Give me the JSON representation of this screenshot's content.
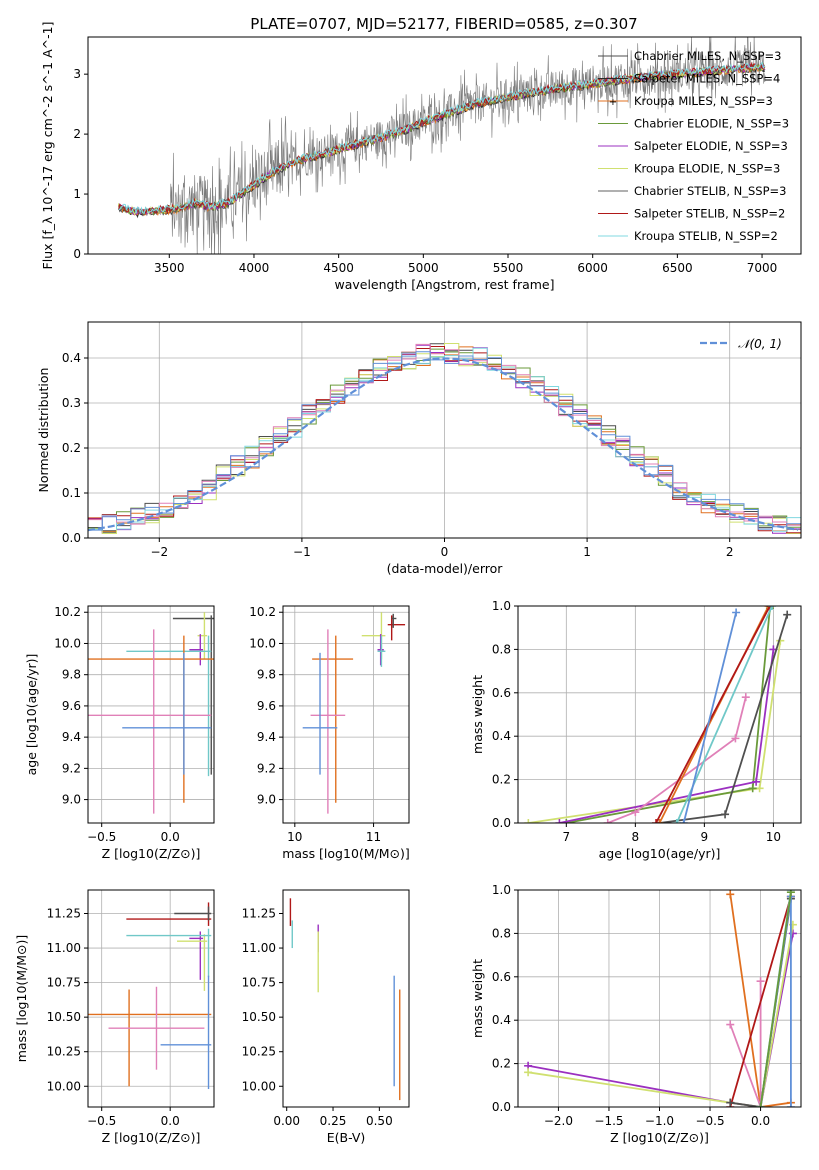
{
  "figure_title": "PLATE=0707, MJD=52177, FIBERID=0585, z=0.307",
  "colors": {
    "c0": "#4d4d4d",
    "c1": "#2a2a2a",
    "c2": "#e07020",
    "c3": "#6a9a3a",
    "c4": "#9b30c0",
    "c5": "#d0e070",
    "c6": "#606060",
    "c7": "#b01818",
    "c8": "#80d8e0",
    "pink": "#e080b8",
    "blue": "#6090d8",
    "dgray": "#505050",
    "teal": "#70c8c8",
    "grid": "#b0b0b0"
  },
  "chart_data": [
    {
      "id": "spectrum",
      "type": "line",
      "title": "PLATE=0707, MJD=52177, FIBERID=0585, z=0.307",
      "xlabel": "wavelength [Angstrom, rest frame]",
      "ylabel": "Flux [f_λ 10^-17 erg cm^-2 s^-1 A^-1]",
      "xlim": [
        3020,
        7230
      ],
      "ylim": [
        0,
        3.62
      ],
      "xticks": [
        "3500",
        "4000",
        "4500",
        "5000",
        "5500",
        "6000",
        "6500",
        "7000"
      ],
      "yticks": [
        "0",
        "1",
        "2",
        "3"
      ],
      "grid": false,
      "legend_position": "top-right",
      "continuum": {
        "x": [
          3200,
          3300,
          3400,
          3550,
          3650,
          3750,
          3850,
          3950,
          4000,
          4100,
          4200,
          4300,
          4400,
          4500,
          4700,
          4900,
          5000,
          5100,
          5300,
          5500,
          5700,
          5900,
          6100,
          6300,
          6500,
          6700,
          6900,
          7020
        ],
        "y": [
          0.78,
          0.7,
          0.72,
          0.75,
          0.85,
          0.78,
          0.86,
          1.05,
          1.15,
          1.35,
          1.48,
          1.6,
          1.66,
          1.75,
          1.9,
          2.08,
          2.2,
          2.3,
          2.5,
          2.62,
          2.72,
          2.8,
          2.88,
          2.95,
          3.0,
          3.05,
          3.1,
          3.12
        ]
      },
      "series": [
        {
          "name": "Chabrier MILES, N_SSP=3"
        },
        {
          "name": "Salpeter MILES, N_SSP=4"
        },
        {
          "name": "Kroupa MILES, N_SSP=3"
        },
        {
          "name": "Chabrier ELODIE, N_SSP=3"
        },
        {
          "name": "Salpeter ELODIE, N_SSP=3"
        },
        {
          "name": "Kroupa ELODIE, N_SSP=3"
        },
        {
          "name": "Chabrier STELIB, N_SSP=3"
        },
        {
          "name": "Salpeter STELIB, N_SSP=2"
        },
        {
          "name": "Kroupa STELIB, N_SSP=2"
        }
      ]
    },
    {
      "id": "residuals",
      "type": "line",
      "xlabel": "(data-model)/error",
      "ylabel": "Normed distribution",
      "xlim": [
        -2.5,
        2.5
      ],
      "ylim": [
        0,
        0.48
      ],
      "xticks": [
        "−2",
        "−1",
        "0",
        "1",
        "2"
      ],
      "yticks": [
        "0.0",
        "0.1",
        "0.2",
        "0.3",
        "0.4"
      ],
      "grid": true,
      "legend_position": "top-right",
      "legend": [
        "𝒩(0, 1)"
      ],
      "gaussian": {
        "mean": 0,
        "sigma": 1
      },
      "histogram_bins": 50
    },
    {
      "id": "age_vs_Z",
      "type": "scatter",
      "xlabel": "Z [log10(Z/Z⊙)]",
      "ylabel": "age [log10(age/yr)]",
      "xlim": [
        -0.6,
        0.32
      ],
      "ylim": [
        8.85,
        10.24
      ],
      "xticks": [
        "−0.5",
        "0.0"
      ],
      "yticks": [
        "9.0",
        "9.2",
        "9.4",
        "9.6",
        "9.8",
        "10.0",
        "10.2"
      ],
      "grid": true,
      "errorbars": [
        {
          "color": "dgray",
          "x": 0.3,
          "xerr": [
            0.28,
            0.02
          ],
          "y": 10.16,
          "yerr": [
            1.0,
            0.02
          ]
        },
        {
          "color": "c5",
          "x": 0.25,
          "xerr": [
            0.05,
            0.02
          ],
          "y": 10.05,
          "yerr": [
            0.15,
            0.15
          ]
        },
        {
          "color": "c4",
          "x": 0.22,
          "xerr": [
            0.08,
            0.02
          ],
          "y": 9.96,
          "yerr": [
            0.1,
            0.1
          ]
        },
        {
          "color": "teal",
          "x": 0.28,
          "xerr": [
            0.6,
            0.02
          ],
          "y": 9.95,
          "yerr": [
            0.8,
            0.1
          ]
        },
        {
          "color": "c2",
          "x": 0.1,
          "xerr": [
            0.7,
            0.25
          ],
          "y": 9.9,
          "yerr": [
            0.92,
            0.15
          ]
        },
        {
          "color": "pink",
          "x": -0.12,
          "xerr": [
            0.5,
            0.42
          ],
          "y": 9.54,
          "yerr": [
            0.63,
            0.55
          ]
        },
        {
          "color": "blue",
          "x": 0.1,
          "xerr": [
            0.45,
            0.2
          ],
          "y": 9.46,
          "yerr": [
            0.3,
            0.48
          ]
        }
      ]
    },
    {
      "id": "age_vs_mass",
      "type": "scatter",
      "xlabel": "mass [log10(M/M⊙)]",
      "ylabel": "",
      "xlim": [
        9.85,
        11.45
      ],
      "ylim": [
        8.85,
        10.24
      ],
      "xticks": [
        "10",
        "11"
      ],
      "yticks": [
        "9.0",
        "9.2",
        "9.4",
        "9.6",
        "9.8",
        "10.0",
        "10.2"
      ],
      "grid": true,
      "errorbars": [
        {
          "color": "c7",
          "x": 11.23,
          "xerr": [
            0.05,
            0.17
          ],
          "y": 10.12,
          "yerr": [
            0.1,
            0.06
          ]
        },
        {
          "color": "dgray",
          "x": 11.25,
          "xerr": [
            0.02,
            0.04
          ],
          "y": 10.16,
          "yerr": [
            0.06,
            0.03
          ]
        },
        {
          "color": "c5",
          "x": 11.1,
          "xerr": [
            0.25,
            0.05
          ],
          "y": 10.05,
          "yerr": [
            0.15,
            0.15
          ]
        },
        {
          "color": "c4",
          "x": 11.09,
          "xerr": [
            0.04,
            0.04
          ],
          "y": 9.96,
          "yerr": [
            0.1,
            0.1
          ]
        },
        {
          "color": "teal",
          "x": 11.1,
          "xerr": [
            0.05,
            0.05
          ],
          "y": 9.95,
          "yerr": [
            0.1,
            0.1
          ]
        },
        {
          "color": "c2",
          "x": 10.52,
          "xerr": [
            0.3,
            0.22
          ],
          "y": 9.9,
          "yerr": [
            0.92,
            0.15
          ]
        },
        {
          "color": "pink",
          "x": 10.42,
          "xerr": [
            0.22,
            0.22
          ],
          "y": 9.54,
          "yerr": [
            0.63,
            0.55
          ]
        },
        {
          "color": "blue",
          "x": 10.32,
          "xerr": [
            0.22,
            0.22
          ],
          "y": 9.46,
          "yerr": [
            0.3,
            0.48
          ]
        }
      ]
    },
    {
      "id": "massweight_vs_age",
      "type": "line",
      "xlabel": "age [log10(age/yr)]",
      "ylabel": "mass weight",
      "xlim": [
        6.3,
        10.4
      ],
      "ylim": [
        0,
        1
      ],
      "xticks": [
        "7",
        "8",
        "9",
        "10"
      ],
      "yticks": [
        "0.0",
        "0.2",
        "0.4",
        "0.6",
        "0.8",
        "1.0"
      ],
      "grid": true,
      "series": [
        {
          "color": "c5",
          "x": [
            6.45,
            9.8,
            10.1
          ],
          "y": [
            0.0,
            0.16,
            0.84
          ]
        },
        {
          "color": "c3",
          "x": [
            7.0,
            9.7,
            9.95
          ],
          "y": [
            0.0,
            0.16,
            0.99
          ]
        },
        {
          "color": "c4",
          "x": [
            6.9,
            9.75,
            10.0
          ],
          "y": [
            0.0,
            0.19,
            0.8
          ]
        },
        {
          "color": "dgray",
          "x": [
            8.35,
            9.3,
            10.2
          ],
          "y": [
            0.0,
            0.04,
            0.96
          ]
        },
        {
          "color": "pink",
          "x": [
            7.6,
            8.0,
            9.45,
            9.6
          ],
          "y": [
            0.0,
            0.05,
            0.39,
            0.58
          ]
        },
        {
          "color": "c2",
          "x": [
            8.35,
            9.93
          ],
          "y": [
            0.0,
            1.0
          ]
        },
        {
          "color": "c7",
          "x": [
            8.3,
            9.95
          ],
          "y": [
            0.0,
            1.0
          ]
        },
        {
          "color": "teal",
          "x": [
            8.6,
            9.98
          ],
          "y": [
            0.0,
            1.0
          ]
        },
        {
          "color": "blue",
          "x": [
            8.7,
            9.46
          ],
          "y": [
            0.0,
            0.97
          ]
        }
      ]
    },
    {
      "id": "mass_vs_Z",
      "type": "scatter",
      "xlabel": "Z [log10(Z/Z⊙)]",
      "ylabel": "mass [log10(M/M⊙)]",
      "xlim": [
        -0.6,
        0.32
      ],
      "ylim": [
        9.85,
        11.42
      ],
      "xticks": [
        "−0.5",
        "0.0"
      ],
      "yticks": [
        "10.00",
        "10.25",
        "10.50",
        "10.75",
        "11.00",
        "11.25"
      ],
      "grid": true,
      "errorbars": [
        {
          "color": "c7",
          "x": 0.28,
          "xerr": [
            0.6,
            0.02
          ],
          "y": 11.21,
          "yerr": [
            0.05,
            0.12
          ]
        },
        {
          "color": "dgray",
          "x": 0.28,
          "xerr": [
            0.25,
            0.02
          ],
          "y": 11.25,
          "yerr": [
            0.05,
            0.05
          ]
        },
        {
          "color": "c4",
          "x": 0.22,
          "xerr": [
            0.08,
            0.02
          ],
          "y": 11.07,
          "yerr": [
            0.3,
            0.05
          ]
        },
        {
          "color": "c5",
          "x": 0.25,
          "xerr": [
            0.2,
            0.02
          ],
          "y": 11.05,
          "yerr": [
            0.36,
            0.05
          ]
        },
        {
          "color": "teal",
          "x": 0.28,
          "xerr": [
            0.6,
            0.02
          ],
          "y": 11.09,
          "yerr": [
            0.3,
            0.05
          ]
        },
        {
          "color": "c2",
          "x": -0.3,
          "xerr": [
            0.3,
            0.6
          ],
          "y": 10.52,
          "yerr": [
            0.52,
            0.18
          ]
        },
        {
          "color": "pink",
          "x": -0.1,
          "xerr": [
            0.35,
            0.35
          ],
          "y": 10.42,
          "yerr": [
            0.3,
            0.3
          ]
        },
        {
          "color": "blue",
          "x": 0.28,
          "xerr": [
            0.35,
            0.02
          ],
          "y": 10.3,
          "yerr": [
            0.32,
            0.5
          ]
        }
      ]
    },
    {
      "id": "mass_vs_EBV",
      "type": "scatter",
      "xlabel": "E(B-V)",
      "ylabel": "",
      "xlim": [
        -0.02,
        0.66
      ],
      "ylim": [
        9.85,
        11.42
      ],
      "xticks": [
        "0.00",
        "0.25",
        "0.50"
      ],
      "yticks": [
        "10.00",
        "10.25",
        "10.50",
        "10.75",
        "11.00",
        "11.25"
      ],
      "grid": false,
      "errorbars": [
        {
          "color": "c7",
          "x": 0.02,
          "xerr": [
            0,
            0
          ],
          "y": 11.26,
          "yerr": [
            0.1,
            0.1
          ]
        },
        {
          "color": "teal",
          "x": 0.03,
          "xerr": [
            0,
            0
          ],
          "y": 11.1,
          "yerr": [
            0.1,
            0.1
          ]
        },
        {
          "color": "c4",
          "x": 0.17,
          "xerr": [
            0,
            0
          ],
          "y": 11.07,
          "yerr": [
            0.1,
            0.1
          ]
        },
        {
          "color": "c5",
          "x": 0.17,
          "xerr": [
            0,
            0
          ],
          "y": 10.9,
          "yerr": [
            0.22,
            0.22
          ]
        },
        {
          "color": "blue",
          "x": 0.58,
          "xerr": [
            0,
            0
          ],
          "y": 10.4,
          "yerr": [
            0.4,
            0.4
          ]
        },
        {
          "color": "c2",
          "x": 0.61,
          "xerr": [
            0,
            0
          ],
          "y": 10.3,
          "yerr": [
            0.4,
            0.4
          ]
        }
      ]
    },
    {
      "id": "massweight_vs_Z",
      "type": "line",
      "xlabel": "Z [log10(Z/Z⊙)]",
      "ylabel": "mass weight",
      "xlim": [
        -2.4,
        0.4
      ],
      "ylim": [
        0,
        1
      ],
      "xticks": [
        "−2.0",
        "−1.5",
        "−1.0",
        "−0.5",
        "0.0"
      ],
      "yticks": [
        "0.0",
        "0.2",
        "0.4",
        "0.6",
        "0.8",
        "1.0"
      ],
      "grid": true,
      "series": [
        {
          "color": "c4",
          "x": [
            -2.3,
            -0.3,
            0.0,
            0.32
          ],
          "y": [
            0.19,
            0.02,
            0.0,
            0.8
          ]
        },
        {
          "color": "c5",
          "x": [
            -2.3,
            -0.3,
            0.0,
            0.32
          ],
          "y": [
            0.16,
            0.02,
            0.0,
            0.84
          ]
        },
        {
          "color": "c2",
          "x": [
            -0.3,
            0.0,
            0.3
          ],
          "y": [
            0.98,
            0.0,
            0.02
          ]
        },
        {
          "color": "pink",
          "x": [
            -0.3,
            0.0,
            0.0
          ],
          "y": [
            0.38,
            0.0,
            0.58
          ]
        },
        {
          "color": "c7",
          "x": [
            -0.3,
            0.3
          ],
          "y": [
            0.0,
            0.97
          ]
        },
        {
          "color": "dgray",
          "x": [
            -0.3,
            0.0,
            0.3
          ],
          "y": [
            0.02,
            0.0,
            0.96
          ]
        },
        {
          "color": "blue",
          "x": [
            0.0,
            0.3,
            0.3
          ],
          "y": [
            0.0,
            0.97,
            0.0
          ]
        },
        {
          "color": "teal",
          "x": [
            0.0,
            0.3
          ],
          "y": [
            0.0,
            1.0
          ]
        },
        {
          "color": "c3",
          "x": [
            0.0,
            0.3
          ],
          "y": [
            0.0,
            0.99
          ]
        }
      ]
    }
  ]
}
